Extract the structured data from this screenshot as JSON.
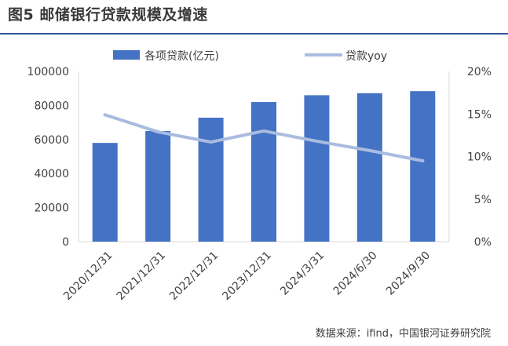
{
  "figure": {
    "title": "图5 邮储银行贷款规模及增速",
    "source": "数据来源：ifind，中国银河证券研究院"
  },
  "colors": {
    "bar": "#4472c4",
    "line": "#a9bce0",
    "grid": "#d9d9d9",
    "title_rule": "#2f5597"
  },
  "chart_data": {
    "type": "bar",
    "title": "邮储银行贷款规模及增速",
    "categories": [
      "2020/12/31",
      "2021/12/31",
      "2022/12/31",
      "2023/12/31",
      "2024/3/31",
      "2024/6/30",
      "2024/9/30"
    ],
    "series": [
      {
        "name": "各项贷款(亿元)",
        "type": "bar",
        "axis": "left",
        "values": [
          58000,
          65000,
          72800,
          82000,
          86000,
          87200,
          88400
        ]
      },
      {
        "name": "贷款yoy",
        "type": "line",
        "axis": "right",
        "values": [
          0.149,
          0.129,
          0.117,
          0.13,
          0.118,
          0.107,
          0.095
        ]
      }
    ],
    "y_left": {
      "min": 0,
      "max": 100000,
      "ticks": [
        0,
        20000,
        40000,
        60000,
        80000,
        100000
      ],
      "tick_labels": [
        "0",
        "20000",
        "40000",
        "60000",
        "80000",
        "100000"
      ]
    },
    "y_right": {
      "min": 0,
      "max": 0.2,
      "ticks": [
        0,
        0.05,
        0.1,
        0.15,
        0.2
      ],
      "tick_labels": [
        "0%",
        "5%",
        "10%",
        "15%",
        "20%"
      ]
    },
    "legend_position": "top"
  }
}
